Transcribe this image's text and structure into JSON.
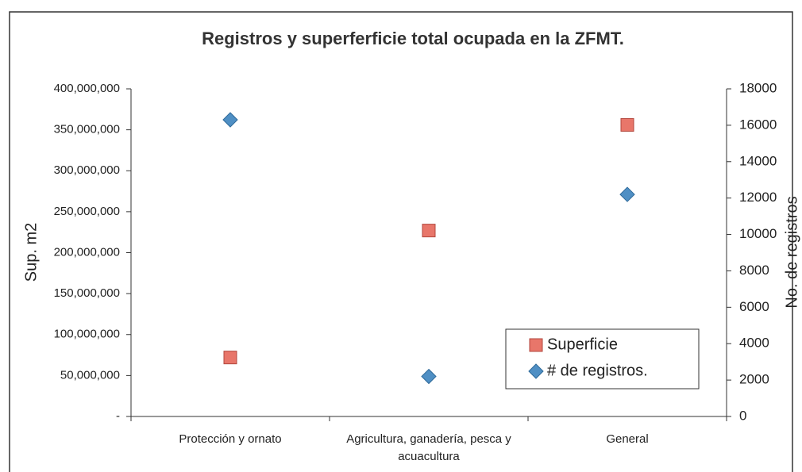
{
  "chart_data": {
    "type": "scatter",
    "title": "Registros y superferficie total ocupada en la ZFMT.",
    "ylabel": "Sup. m2",
    "y2label": "No. de registros",
    "categories": [
      "Protección y ornato",
      "Agricultura, ganadería, pesca y acuacultura",
      "General"
    ],
    "series": [
      {
        "name": "Superficie",
        "color": "#e8766a",
        "marker": "square",
        "values": [
          72000000,
          227000000,
          356000000
        ]
      },
      {
        "name": "# de registros.",
        "color": "#4f8fc4",
        "marker": "diamond",
        "axis": "y2",
        "values": [
          16300,
          2200,
          12200
        ]
      }
    ],
    "ylim": [
      0,
      400000000
    ],
    "yticks": [
      {
        "value": 0,
        "label": "-"
      },
      {
        "value": 50000000,
        "label": "50,000,000"
      },
      {
        "value": 100000000,
        "label": "100,000,000"
      },
      {
        "value": 150000000,
        "label": "150,000,000"
      },
      {
        "value": 200000000,
        "label": "200,000,000"
      },
      {
        "value": 250000000,
        "label": "250,000,000"
      },
      {
        "value": 300000000,
        "label": "300,000,000"
      },
      {
        "value": 350000000,
        "label": "350,000,000"
      },
      {
        "value": 400000000,
        "label": "400,000,000"
      }
    ],
    "y2lim": [
      0,
      18000
    ],
    "y2ticks": [
      0,
      2000,
      4000,
      6000,
      8000,
      10000,
      12000,
      14000,
      16000,
      18000
    ],
    "legend": "lower right"
  }
}
